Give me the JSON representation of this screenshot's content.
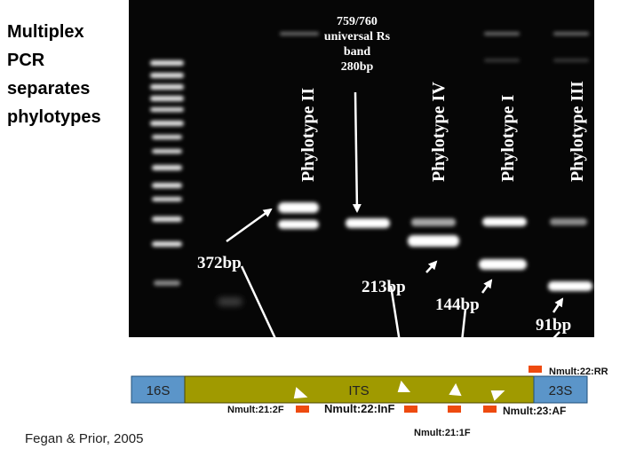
{
  "title": {
    "lines": [
      "Multiplex",
      "PCR",
      "separates",
      "phylotypes"
    ]
  },
  "lanes": {
    "phylotype_ii": "Phylotype II",
    "phylotype_iv": "Phylotype IV",
    "phylotype_i": "Phylotype I",
    "phylotype_iii": "Phylotype III"
  },
  "universal_band": {
    "line1": "759/760",
    "line2": "universal Rs",
    "line3": "band",
    "line4": "280bp"
  },
  "sizes": {
    "s372": "372bp",
    "s213": "213bp",
    "s144": "144bp",
    "s91": "91bp"
  },
  "gene_map": {
    "left": "16S",
    "middle": "ITS",
    "right": "23S",
    "primers": {
      "p1": "Nmult:21:2F",
      "p2": "Nmult:22:InF",
      "p3": "Nmult:21:1F",
      "p4": "Nmult:23:AF",
      "p5": "Nmult:22:RR"
    },
    "colors": {
      "rrna": "#5b95c9",
      "its": "#a09a00",
      "primer": "#ee4a0f"
    }
  },
  "citation": "Fegan & Prior, 2005"
}
